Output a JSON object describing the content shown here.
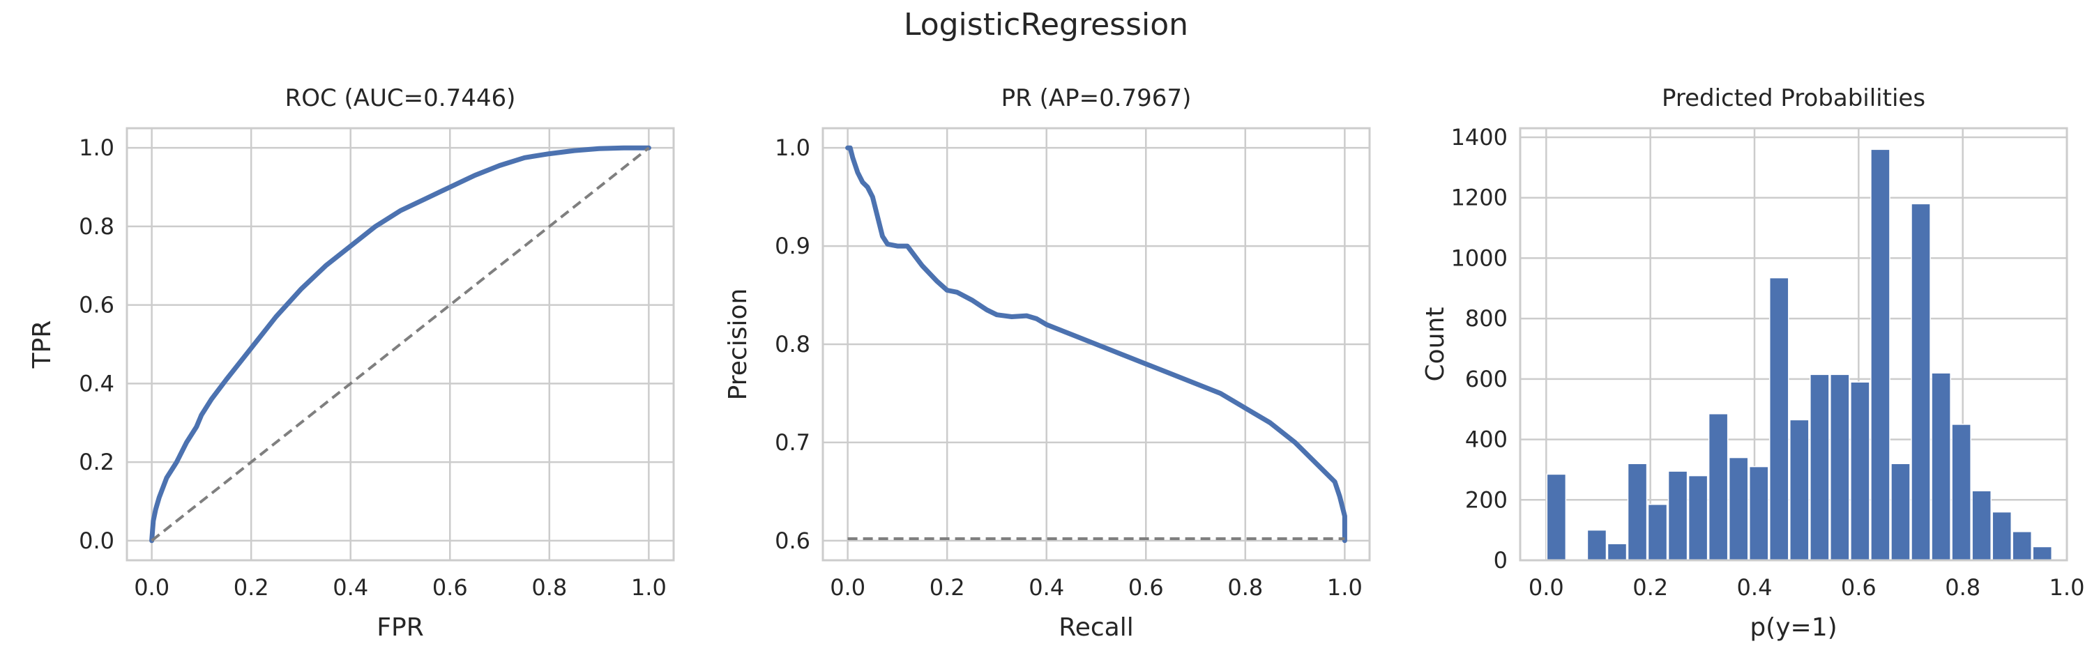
{
  "figure": {
    "title": "LogisticRegression"
  },
  "colors": {
    "series": "#4c72b0",
    "reference": "#7f7f7f",
    "grid": "#cccccc",
    "frame": "#cccccc"
  },
  "chart_data": [
    {
      "type": "line",
      "title": "ROC (AUC=0.7446)",
      "xlabel": "FPR",
      "ylabel": "TPR",
      "xlim": [
        -0.05,
        1.05
      ],
      "ylim": [
        -0.05,
        1.05
      ],
      "xticks": [
        "0.0",
        "0.2",
        "0.4",
        "0.6",
        "0.8",
        "1.0"
      ],
      "yticks": [
        "0.0",
        "0.2",
        "0.4",
        "0.6",
        "0.8",
        "1.0"
      ],
      "grid": true,
      "series": [
        {
          "x": [
            0,
            0.003,
            0.008,
            0.015,
            0.03,
            0.05,
            0.07,
            0.09,
            0.1,
            0.12,
            0.15,
            0.2,
            0.25,
            0.3,
            0.35,
            0.4,
            0.45,
            0.5,
            0.55,
            0.6,
            0.65,
            0.7,
            0.75,
            0.8,
            0.85,
            0.9,
            0.95,
            1.0
          ],
          "y": [
            0,
            0.05,
            0.08,
            0.11,
            0.16,
            0.2,
            0.25,
            0.29,
            0.32,
            0.36,
            0.41,
            0.49,
            0.57,
            0.64,
            0.7,
            0.75,
            0.8,
            0.84,
            0.87,
            0.9,
            0.93,
            0.955,
            0.975,
            0.985,
            0.993,
            0.998,
            1.0,
            1.0
          ]
        },
        {
          "x": [
            0,
            1
          ],
          "y": [
            0,
            1
          ],
          "style": "dashed"
        }
      ]
    },
    {
      "type": "line",
      "title": "PR (AP=0.7967)",
      "xlabel": "Recall",
      "ylabel": "Precision",
      "xlim": [
        -0.05,
        1.05
      ],
      "ylim": [
        0.58,
        1.02
      ],
      "xticks": [
        "0.0",
        "0.2",
        "0.4",
        "0.6",
        "0.8",
        "1.0"
      ],
      "yticks": [
        "0.6",
        "0.7",
        "0.8",
        "0.9",
        "1.0"
      ],
      "grid": true,
      "series": [
        {
          "x": [
            0.0,
            0.005,
            0.01,
            0.02,
            0.03,
            0.04,
            0.05,
            0.06,
            0.07,
            0.08,
            0.1,
            0.12,
            0.15,
            0.18,
            0.2,
            0.22,
            0.25,
            0.28,
            0.3,
            0.33,
            0.36,
            0.38,
            0.4,
            0.45,
            0.5,
            0.55,
            0.6,
            0.65,
            0.7,
            0.75,
            0.8,
            0.85,
            0.9,
            0.95,
            0.98,
            0.99,
            1.0,
            1.0
          ],
          "y": [
            1.0,
            1.0,
            0.99,
            0.975,
            0.965,
            0.96,
            0.95,
            0.93,
            0.91,
            0.902,
            0.9,
            0.9,
            0.88,
            0.864,
            0.855,
            0.853,
            0.845,
            0.835,
            0.83,
            0.828,
            0.829,
            0.826,
            0.82,
            0.81,
            0.8,
            0.79,
            0.78,
            0.77,
            0.76,
            0.75,
            0.735,
            0.72,
            0.7,
            0.675,
            0.66,
            0.645,
            0.625,
            0.6
          ]
        },
        {
          "x": [
            0,
            1
          ],
          "y": [
            0.602,
            0.602
          ],
          "style": "dashed"
        }
      ]
    },
    {
      "type": "bar",
      "title": "Predicted Probabilities",
      "xlabel": "p(y=1)",
      "ylabel": "Count",
      "xlim": [
        -0.05,
        1.0
      ],
      "ylim": [
        0,
        1430
      ],
      "xticks": [
        "0.0",
        "0.2",
        "0.4",
        "0.6",
        "0.8",
        "1.0"
      ],
      "yticks": [
        "0",
        "200",
        "400",
        "600",
        "800",
        "1000",
        "1200",
        "1400"
      ],
      "grid": true,
      "bin_width": 0.0389,
      "bin_starts": [
        0.0,
        0.0389,
        0.0778,
        0.1167,
        0.1556,
        0.1944,
        0.2333,
        0.2722,
        0.3111,
        0.35,
        0.3889,
        0.4278,
        0.4667,
        0.5056,
        0.5444,
        0.5833,
        0.6222,
        0.6611,
        0.7,
        0.7389,
        0.7778,
        0.8167,
        0.8556,
        0.8944,
        0.9333
      ],
      "values": [
        285,
        0,
        100,
        55,
        320,
        185,
        295,
        280,
        485,
        340,
        310,
        935,
        465,
        615,
        615,
        590,
        1360,
        320,
        1180,
        620,
        450,
        230,
        160,
        95,
        45
      ]
    }
  ]
}
